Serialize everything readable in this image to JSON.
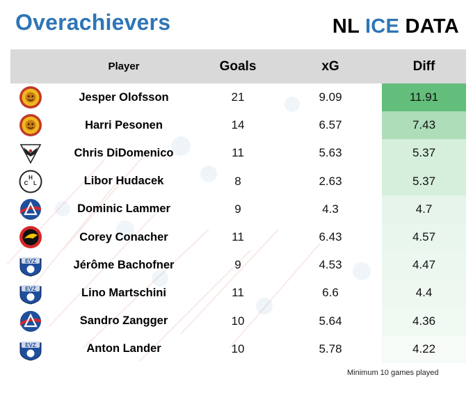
{
  "title": "Overachievers",
  "brand": {
    "prefix": "NL",
    "highlight": "ICE",
    "suffix": "DATA"
  },
  "footnote": "Minimum 10 games played",
  "colors": {
    "title": "#2e75b6",
    "header_bg": "#d9d9d9",
    "diff_scale_max": "#63be7b",
    "diff_scale_min": "#ffffff"
  },
  "chart_data": {
    "type": "table",
    "columns": [
      "",
      "Player",
      "Goals",
      "xG",
      "Diff"
    ],
    "rows": [
      {
        "team_logo": "lions-logo",
        "player": "Jesper Olofsson",
        "goals": 21,
        "xg": "9.09",
        "diff": "11.91"
      },
      {
        "team_logo": "lions-logo",
        "player": "Harri Pesonen",
        "goals": 14,
        "xg": "6.57",
        "diff": "7.43"
      },
      {
        "team_logo": "eagle-logo",
        "player": "Chris DiDomenico",
        "goals": 11,
        "xg": "5.63",
        "diff": "5.37"
      },
      {
        "team_logo": "hcl-logo",
        "player": "Libor Hudacek",
        "goals": 8,
        "xg": "2.63",
        "diff": "5.37"
      },
      {
        "team_logo": "lakers-logo",
        "player": "Dominic Lammer",
        "goals": 9,
        "xg": "4.3",
        "diff": "4.7"
      },
      {
        "team_logo": "tigers-logo",
        "player": "Corey Conacher",
        "goals": 11,
        "xg": "6.43",
        "diff": "4.57"
      },
      {
        "team_logo": "evz-logo",
        "player": "Jérôme Bachofner",
        "goals": 9,
        "xg": "4.53",
        "diff": "4.47"
      },
      {
        "team_logo": "evz-logo",
        "player": "Lino Martschini",
        "goals": 11,
        "xg": "6.6",
        "diff": "4.4"
      },
      {
        "team_logo": "lakers-logo",
        "player": "Sandro Zangger",
        "goals": 10,
        "xg": "5.64",
        "diff": "4.36"
      },
      {
        "team_logo": "evz-logo",
        "player": "Anton Lander",
        "goals": 10,
        "xg": "5.78",
        "diff": "4.22"
      }
    ]
  }
}
